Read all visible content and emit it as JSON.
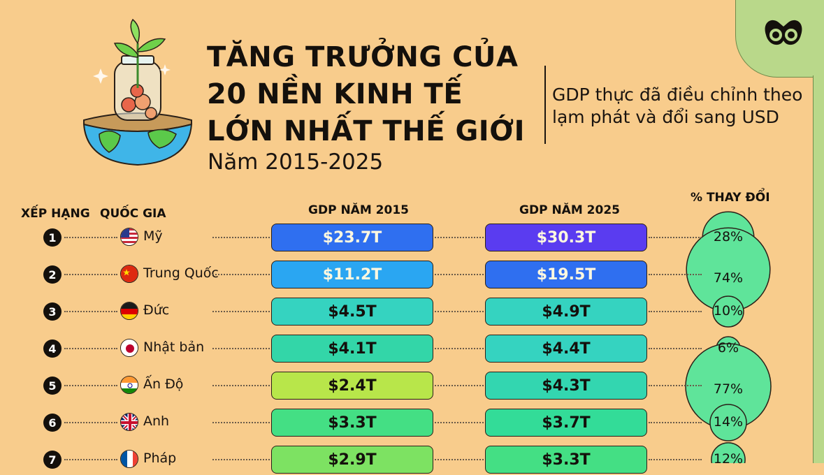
{
  "title_lines": [
    "TĂNG TRƯỞNG CỦA",
    "20 NỀN KINH TẾ",
    "LỚN NHẤT THẾ GIỚI"
  ],
  "years": "Năm 2015-2025",
  "subtitle_lines": [
    "GDP thực đã điều chỉnh theo",
    "lạm phát và đổi sang USD"
  ],
  "headers": {
    "rank": "XẾP HẠNG",
    "country": "QUỐC GIA",
    "gdp2015": "GDP NĂM 2015",
    "gdp2025": "GDP NĂM 2025",
    "change": "% THAY ĐỔI"
  },
  "chart_data": {
    "type": "table",
    "columns": [
      "XẾP HẠNG",
      "QUỐC GIA",
      "GDP NĂM 2015",
      "GDP NĂM 2025",
      "% THAY ĐỔI"
    ],
    "rows": [
      {
        "rank": "1",
        "country": "Mỹ",
        "flag": "us-flag-icon",
        "gdp2015": "$23.7T",
        "gdp2025": "$30.3T",
        "change": "28%",
        "change_value": 28,
        "color2015": "#2f6ff0",
        "color2025": "#5a3cf0"
      },
      {
        "rank": "2",
        "country": "Trung Quốc",
        "flag": "china-flag-icon",
        "gdp2015": "$11.2T",
        "gdp2025": "$19.5T",
        "change": "74%",
        "change_value": 74,
        "color2015": "#2aa6f2",
        "color2025": "#2f6ff0"
      },
      {
        "rank": "3",
        "country": "Đức",
        "flag": "germany-flag-icon",
        "gdp2015": "$4.5T",
        "gdp2025": "$4.9T",
        "change": "10%",
        "change_value": 10,
        "color2015": "#35d3c0",
        "color2025": "#35d3c0"
      },
      {
        "rank": "4",
        "country": "Nhật bản",
        "flag": "japan-flag-icon",
        "gdp2015": "$4.1T",
        "gdp2025": "$4.4T",
        "change": "6%",
        "change_value": 6,
        "color2015": "#33d6a8",
        "color2025": "#35d3c0"
      },
      {
        "rank": "5",
        "country": "Ấn Độ",
        "flag": "india-flag-icon",
        "gdp2015": "$2.4T",
        "gdp2025": "$4.3T",
        "change": "77%",
        "change_value": 77,
        "color2015": "#b8e64a",
        "color2025": "#33d6b0"
      },
      {
        "rank": "6",
        "country": "Anh",
        "flag": "uk-flag-icon",
        "gdp2015": "$3.3T",
        "gdp2025": "$3.7T",
        "change": "14%",
        "change_value": 14,
        "color2015": "#44df84",
        "color2025": "#33dc98"
      },
      {
        "rank": "7",
        "country": "Pháp",
        "flag": "france-flag-icon",
        "gdp2015": "$2.9T",
        "gdp2025": "$3.3T",
        "change": "12%",
        "change_value": 12,
        "color2015": "#7de262",
        "color2025": "#44df84"
      }
    ]
  },
  "colors": {
    "background": "#f8cc8c",
    "bubble": "#5fe49a",
    "corner": "#b9d88a"
  }
}
